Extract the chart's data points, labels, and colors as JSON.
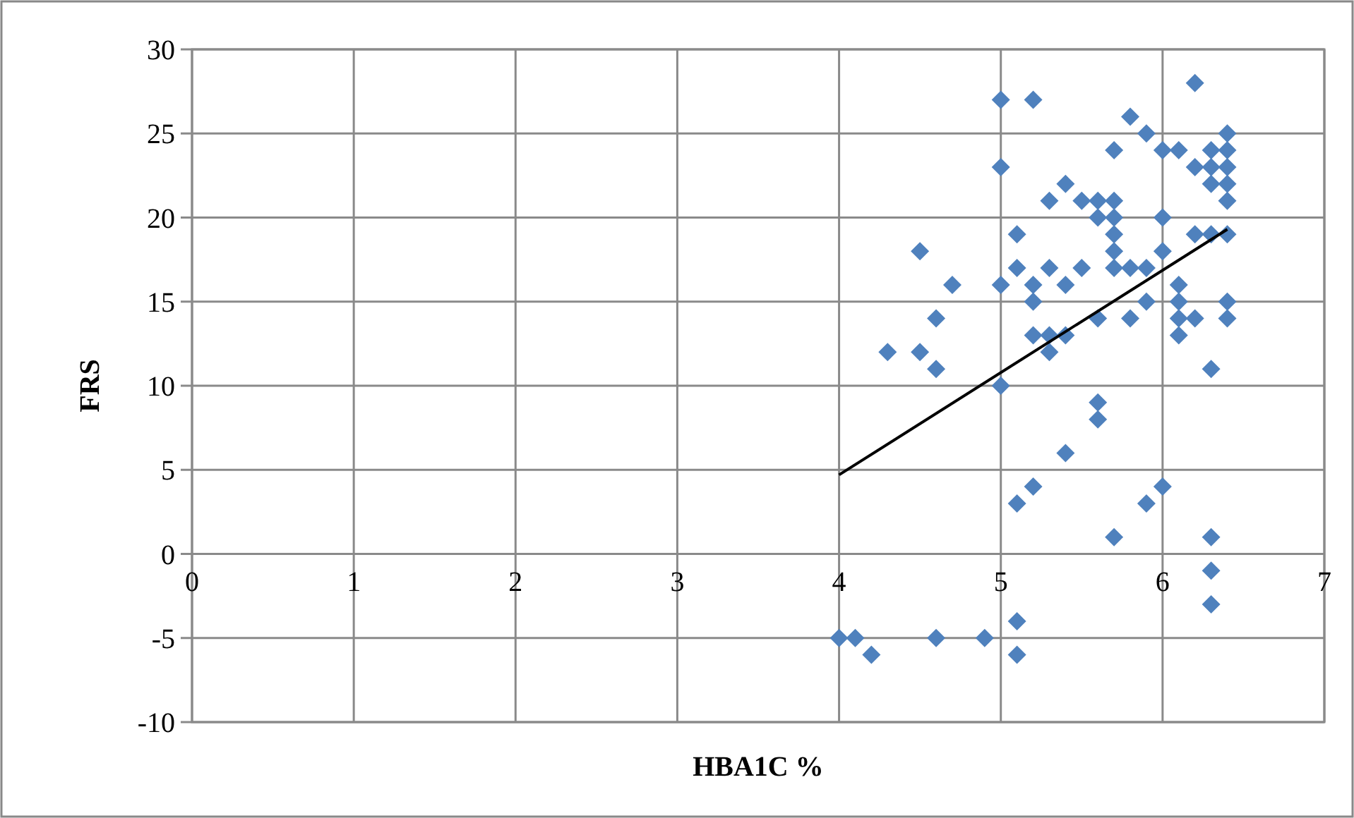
{
  "chart_data": {
    "type": "scatter",
    "xlabel": "HBA1C %",
    "ylabel": "FRS",
    "xlim": [
      0,
      7
    ],
    "ylim": [
      -10,
      30
    ],
    "xticks": [
      0,
      1,
      2,
      3,
      4,
      5,
      6,
      7
    ],
    "yticks": [
      -10,
      -5,
      0,
      5,
      10,
      15,
      20,
      25,
      30
    ],
    "grid": true,
    "marker": "diamond",
    "series": [
      {
        "color": "#4f81bd",
        "x": [
          4.0,
          4.1,
          4.2,
          4.3,
          4.5,
          4.5,
          4.6,
          4.6,
          4.6,
          4.7,
          4.9,
          5.0,
          5.0,
          5.0,
          5.0,
          5.1,
          5.1,
          5.1,
          5.1,
          5.1,
          5.2,
          5.2,
          5.2,
          5.2,
          5.2,
          5.3,
          5.3,
          5.3,
          5.3,
          5.4,
          5.4,
          5.4,
          5.4,
          5.5,
          5.5,
          5.6,
          5.6,
          5.6,
          5.6,
          5.6,
          5.7,
          5.7,
          5.7,
          5.7,
          5.7,
          5.7,
          5.7,
          5.8,
          5.8,
          5.8,
          5.9,
          5.9,
          5.9,
          5.9,
          6.0,
          6.0,
          6.0,
          6.0,
          6.1,
          6.1,
          6.1,
          6.1,
          6.1,
          6.2,
          6.2,
          6.2,
          6.2,
          6.3,
          6.3,
          6.3,
          6.3,
          6.3,
          6.3,
          6.3,
          6.3,
          6.4,
          6.4,
          6.4,
          6.4,
          6.4,
          6.4,
          6.4,
          6.4
        ],
        "values": [
          -5,
          -5,
          -6,
          12,
          18,
          12,
          14,
          11,
          -5,
          16,
          -5,
          27,
          23,
          16,
          10,
          19,
          17,
          3,
          -4,
          -6,
          27,
          16,
          15,
          13,
          4,
          21,
          17,
          13,
          12,
          22,
          16,
          13,
          6,
          21,
          17,
          21,
          20,
          14,
          9,
          8,
          24,
          21,
          20,
          19,
          18,
          17,
          1,
          26,
          17,
          14,
          25,
          17,
          15,
          3,
          24,
          20,
          18,
          4,
          24,
          16,
          15,
          14,
          13,
          28,
          23,
          19,
          14,
          24,
          23,
          22,
          19,
          11,
          1,
          -1,
          -3,
          25,
          24,
          23,
          22,
          21,
          19,
          15,
          14
        ]
      },
      {
        "type": "line",
        "color": "#000000",
        "marker": "none",
        "x": [
          4.0,
          6.4
        ],
        "values": [
          4.7,
          19.3
        ]
      }
    ]
  }
}
